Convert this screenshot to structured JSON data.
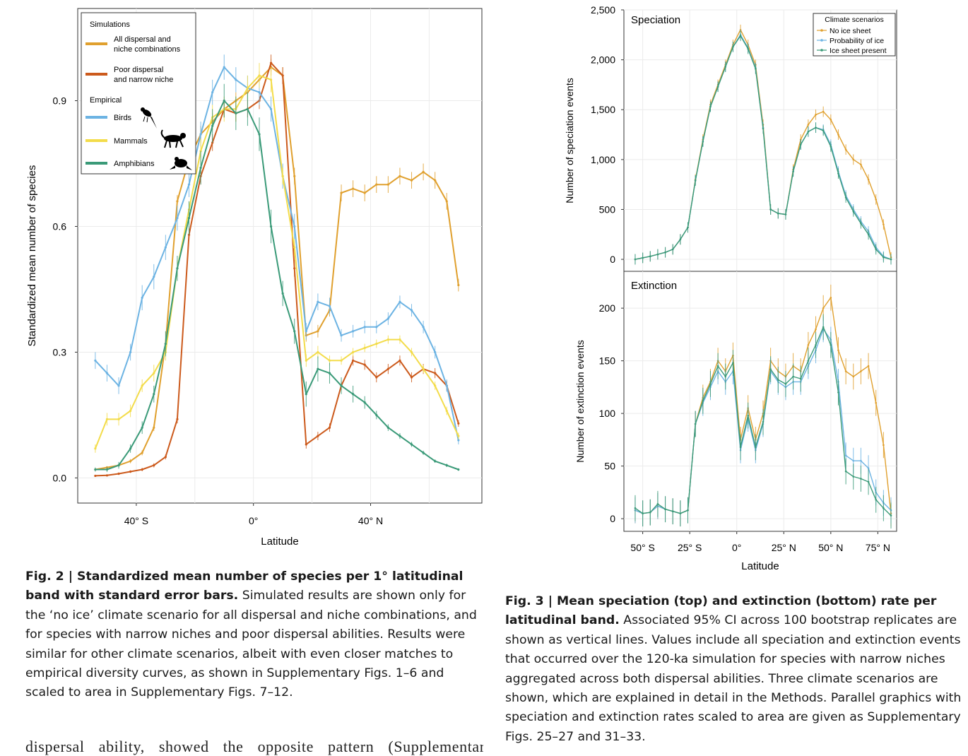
{
  "chart_data": [
    {
      "type": "line",
      "xlabel": "Latitude",
      "ylabel": "Standardized mean number of species",
      "x_ticks": [
        {
          "v": -40,
          "label": "40° S"
        },
        {
          "v": 0,
          "label": "0°"
        },
        {
          "v": 40,
          "label": "40° N"
        }
      ],
      "y_ticks": [
        {
          "v": 0.0,
          "label": "0.0"
        },
        {
          "v": 0.3,
          "label": "0.3"
        },
        {
          "v": 0.6,
          "label": "0.6"
        },
        {
          "v": 0.9,
          "label": "0.9"
        }
      ],
      "xlim": [
        -60,
        78
      ],
      "ylim": [
        -0.06,
        1.12
      ],
      "grid": true,
      "legend_position": "top-left",
      "legend": {
        "group1_title": "Simulations",
        "group2_title": "Empirical",
        "entries": [
          {
            "series": 0,
            "lines": [
              "All dispersal and",
              "niche combinations"
            ]
          },
          {
            "series": 1,
            "lines": [
              "Poor dispersal",
              "and narrow niche"
            ]
          },
          {
            "series": 2,
            "lines": [
              "Birds"
            ],
            "icon": "bird-silhouette-icon"
          },
          {
            "series": 3,
            "lines": [
              "Mammals"
            ],
            "icon": "cheetah-silhouette-icon"
          },
          {
            "series": 4,
            "lines": [
              "Amphibians"
            ],
            "icon": "frog-silhouette-icon"
          }
        ]
      },
      "x": [
        -54,
        -50,
        -46,
        -42,
        -38,
        -34,
        -30,
        -26,
        -22,
        -18,
        -14,
        -10,
        -6,
        -2,
        2,
        6,
        10,
        14,
        18,
        22,
        26,
        30,
        34,
        38,
        42,
        46,
        50,
        54,
        58,
        62,
        66,
        70
      ],
      "series": [
        {
          "color": "#e0a02e",
          "values": [
            0.02,
            0.025,
            0.03,
            0.04,
            0.06,
            0.12,
            0.32,
            0.66,
            0.76,
            0.82,
            0.85,
            0.88,
            0.9,
            0.92,
            0.95,
            0.98,
            0.96,
            0.72,
            0.34,
            0.35,
            0.4,
            0.68,
            0.69,
            0.68,
            0.7,
            0.7,
            0.72,
            0.71,
            0.73,
            0.71,
            0.66,
            0.46
          ],
          "err": [
            0.003,
            0.003,
            0.004,
            0.005,
            0.006,
            0.008,
            0.01,
            0.015,
            0.015,
            0.02,
            0.02,
            0.02,
            0.02,
            0.02,
            0.02,
            0.02,
            0.02,
            0.02,
            0.015,
            0.015,
            0.015,
            0.02,
            0.02,
            0.02,
            0.02,
            0.02,
            0.02,
            0.02,
            0.02,
            0.02,
            0.02,
            0.015
          ]
        },
        {
          "color": "#cc5a1c",
          "values": [
            0.005,
            0.006,
            0.01,
            0.015,
            0.02,
            0.03,
            0.05,
            0.14,
            0.58,
            0.72,
            0.8,
            0.88,
            0.87,
            0.88,
            0.9,
            0.99,
            0.96,
            0.5,
            0.08,
            0.1,
            0.12,
            0.22,
            0.28,
            0.27,
            0.24,
            0.26,
            0.28,
            0.24,
            0.26,
            0.25,
            0.22,
            0.13
          ],
          "err": [
            0.002,
            0.002,
            0.003,
            0.003,
            0.004,
            0.005,
            0.006,
            0.01,
            0.015,
            0.02,
            0.02,
            0.02,
            0.02,
            0.02,
            0.02,
            0.02,
            0.02,
            0.02,
            0.01,
            0.01,
            0.01,
            0.01,
            0.012,
            0.012,
            0.012,
            0.012,
            0.012,
            0.012,
            0.012,
            0.012,
            0.012,
            0.008
          ]
        },
        {
          "color": "#6cb3e3",
          "values": [
            0.28,
            0.25,
            0.22,
            0.3,
            0.43,
            0.48,
            0.55,
            0.62,
            0.7,
            0.82,
            0.92,
            0.98,
            0.95,
            0.93,
            0.92,
            0.88,
            0.72,
            0.6,
            0.35,
            0.42,
            0.41,
            0.34,
            0.35,
            0.36,
            0.36,
            0.38,
            0.42,
            0.4,
            0.36,
            0.3,
            0.22,
            0.09
          ],
          "err": [
            0.02,
            0.02,
            0.02,
            0.02,
            0.03,
            0.03,
            0.03,
            0.03,
            0.03,
            0.03,
            0.03,
            0.03,
            0.03,
            0.03,
            0.03,
            0.03,
            0.03,
            0.03,
            0.02,
            0.02,
            0.02,
            0.015,
            0.015,
            0.015,
            0.015,
            0.015,
            0.015,
            0.015,
            0.015,
            0.015,
            0.015,
            0.01
          ]
        },
        {
          "color": "#f3dc4a",
          "values": [
            0.07,
            0.14,
            0.14,
            0.16,
            0.22,
            0.25,
            0.3,
            0.5,
            0.64,
            0.78,
            0.86,
            0.88,
            0.88,
            0.93,
            0.96,
            0.95,
            0.72,
            0.55,
            0.28,
            0.3,
            0.28,
            0.28,
            0.3,
            0.31,
            0.32,
            0.33,
            0.33,
            0.3,
            0.26,
            0.22,
            0.16,
            0.1
          ],
          "err": [
            0.01,
            0.015,
            0.015,
            0.015,
            0.015,
            0.02,
            0.02,
            0.02,
            0.02,
            0.03,
            0.03,
            0.03,
            0.03,
            0.03,
            0.03,
            0.03,
            0.02,
            0.02,
            0.015,
            0.015,
            0.012,
            0.01,
            0.01,
            0.01,
            0.01,
            0.01,
            0.01,
            0.01,
            0.01,
            0.01,
            0.01,
            0.008
          ]
        },
        {
          "color": "#3a9a78",
          "values": [
            0.02,
            0.02,
            0.03,
            0.07,
            0.12,
            0.2,
            0.32,
            0.5,
            0.62,
            0.74,
            0.84,
            0.9,
            0.87,
            0.88,
            0.82,
            0.6,
            0.44,
            0.35,
            0.2,
            0.26,
            0.25,
            0.22,
            0.2,
            0.18,
            0.15,
            0.12,
            0.1,
            0.08,
            0.06,
            0.04,
            0.03,
            0.02
          ],
          "err": [
            0.005,
            0.006,
            0.008,
            0.01,
            0.015,
            0.02,
            0.03,
            0.03,
            0.04,
            0.04,
            0.04,
            0.04,
            0.04,
            0.04,
            0.04,
            0.04,
            0.03,
            0.03,
            0.03,
            0.03,
            0.025,
            0.02,
            0.02,
            0.015,
            0.01,
            0.008,
            0.007,
            0.006,
            0.005,
            0.004,
            0.004,
            0.003
          ]
        }
      ]
    },
    {
      "type": "line",
      "panel_label": "Speciation",
      "xlabel": "",
      "ylabel": "Number of speciation events",
      "y_ticks": [
        {
          "v": 0,
          "label": "0"
        },
        {
          "v": 500,
          "label": "500"
        },
        {
          "v": 1000,
          "label": "1,000"
        },
        {
          "v": 1500,
          "label": "1,500"
        },
        {
          "v": 2000,
          "label": "2,000"
        },
        {
          "v": 2500,
          "label": "2,500"
        }
      ],
      "xlim": [
        -60,
        85
      ],
      "ylim": [
        -120,
        2500
      ],
      "grid": true,
      "legend_position": "top-right",
      "legend_title": "Climate scenarios",
      "x": [
        -54,
        -50,
        -46,
        -42,
        -38,
        -34,
        -30,
        -26,
        -22,
        -18,
        -14,
        -10,
        -6,
        -2,
        2,
        6,
        10,
        14,
        18,
        22,
        26,
        30,
        34,
        38,
        42,
        46,
        50,
        54,
        58,
        62,
        66,
        70,
        74,
        78,
        82
      ],
      "series": [
        {
          "name": "No ice sheet",
          "color": "#e0a02e",
          "values": [
            0,
            15,
            30,
            50,
            70,
            100,
            200,
            320,
            800,
            1200,
            1550,
            1750,
            1950,
            2150,
            2300,
            2150,
            1950,
            1350,
            500,
            460,
            450,
            900,
            1200,
            1350,
            1450,
            1480,
            1400,
            1250,
            1100,
            1000,
            950,
            800,
            600,
            350,
            20
          ]
        },
        {
          "name": "Probability of ice",
          "color": "#6cb3e3",
          "values": [
            0,
            15,
            30,
            50,
            70,
            100,
            200,
            320,
            790,
            1180,
            1530,
            1730,
            1930,
            2130,
            2250,
            2120,
            1920,
            1320,
            500,
            460,
            450,
            880,
            1150,
            1280,
            1320,
            1300,
            1150,
            880,
            640,
            500,
            380,
            280,
            120,
            30,
            0
          ]
        },
        {
          "name": "Ice sheet present",
          "color": "#3a9a78",
          "values": [
            0,
            15,
            30,
            50,
            70,
            100,
            200,
            320,
            790,
            1180,
            1530,
            1730,
            1930,
            2130,
            2240,
            2110,
            1910,
            1310,
            500,
            460,
            450,
            880,
            1150,
            1280,
            1320,
            1290,
            1130,
            860,
            620,
            480,
            360,
            250,
            100,
            20,
            0
          ]
        }
      ]
    },
    {
      "type": "line",
      "panel_label": "Extinction",
      "xlabel": "Latitude",
      "ylabel": "Number of extinction events",
      "x_ticks": [
        {
          "v": -50,
          "label": "50° S"
        },
        {
          "v": -25,
          "label": "25° S"
        },
        {
          "v": 0,
          "label": "0°"
        },
        {
          "v": 25,
          "label": "25° N"
        },
        {
          "v": 50,
          "label": "50° N"
        },
        {
          "v": 75,
          "label": "75° N"
        }
      ],
      "y_ticks": [
        {
          "v": 0,
          "label": "0"
        },
        {
          "v": 50,
          "label": "50"
        },
        {
          "v": 100,
          "label": "100"
        },
        {
          "v": 150,
          "label": "150"
        },
        {
          "v": 200,
          "label": "200"
        }
      ],
      "xlim": [
        -60,
        85
      ],
      "ylim": [
        -12,
        235
      ],
      "grid": true,
      "x": [
        -54,
        -50,
        -46,
        -42,
        -38,
        -34,
        -30,
        -26,
        -22,
        -18,
        -14,
        -10,
        -6,
        -2,
        2,
        6,
        10,
        14,
        18,
        22,
        26,
        30,
        34,
        38,
        42,
        46,
        50,
        54,
        58,
        62,
        66,
        70,
        74,
        78,
        82
      ],
      "series": [
        {
          "name": "No ice sheet",
          "color": "#e0a02e",
          "values": [
            8,
            5,
            6,
            12,
            9,
            7,
            5,
            8,
            90,
            115,
            130,
            150,
            140,
            155,
            75,
            105,
            75,
            100,
            150,
            140,
            135,
            145,
            140,
            165,
            180,
            200,
            210,
            160,
            140,
            135,
            140,
            145,
            110,
            70,
            5
          ]
        },
        {
          "name": "Probability of ice",
          "color": "#6cb3e3",
          "values": [
            8,
            5,
            6,
            12,
            9,
            7,
            5,
            8,
            90,
            110,
            125,
            140,
            130,
            140,
            65,
            95,
            65,
            90,
            140,
            130,
            125,
            130,
            130,
            145,
            160,
            180,
            170,
            130,
            60,
            55,
            55,
            48,
            25,
            15,
            8
          ]
        },
        {
          "name": "Ice sheet present",
          "color": "#3a9a78",
          "values": [
            10,
            5,
            6,
            14,
            9,
            7,
            5,
            8,
            90,
            112,
            128,
            145,
            135,
            148,
            68,
            98,
            68,
            92,
            142,
            132,
            128,
            135,
            133,
            150,
            165,
            182,
            165,
            120,
            45,
            40,
            38,
            35,
            18,
            10,
            3
          ]
        }
      ]
    }
  ],
  "captions": {
    "fig2_bold": "Fig. 2 | Standardized mean number of species per 1° latitudinal band with standard error bars.",
    "fig2_text": " Simulated results are shown only for the ‘no ice’ climate scenario for all dispersal and niche combinations, and for species with narrow niches and poor dispersal abilities. Results were similar for other climate scenarios, albeit with even closer matches to empirical diversity curves, as shown in Supplementary Figs. 1–6 and scaled to area in Supplementary Figs. 7–12.",
    "fig3_bold": "Fig. 3 | Mean speciation (top) and extinction (bottom) rate per latitudinal band.",
    "fig3_text": " Associated 95% CI across 100 bootstrap replicates are shown as vertical lines. Values include all speciation and extinction events that occurred over the 120-ka simulation for species with narrow niches aggregated across both dispersal abilities. Three climate scenarios are shown, which are explained in detail in the Methods. Parallel graphics with speciation and extinction rates scaled to area are given as Supplementary Figs. 25–27 and 31–33.",
    "body_text": "dispersal ability, showed the opposite pattern (Supplementary"
  }
}
